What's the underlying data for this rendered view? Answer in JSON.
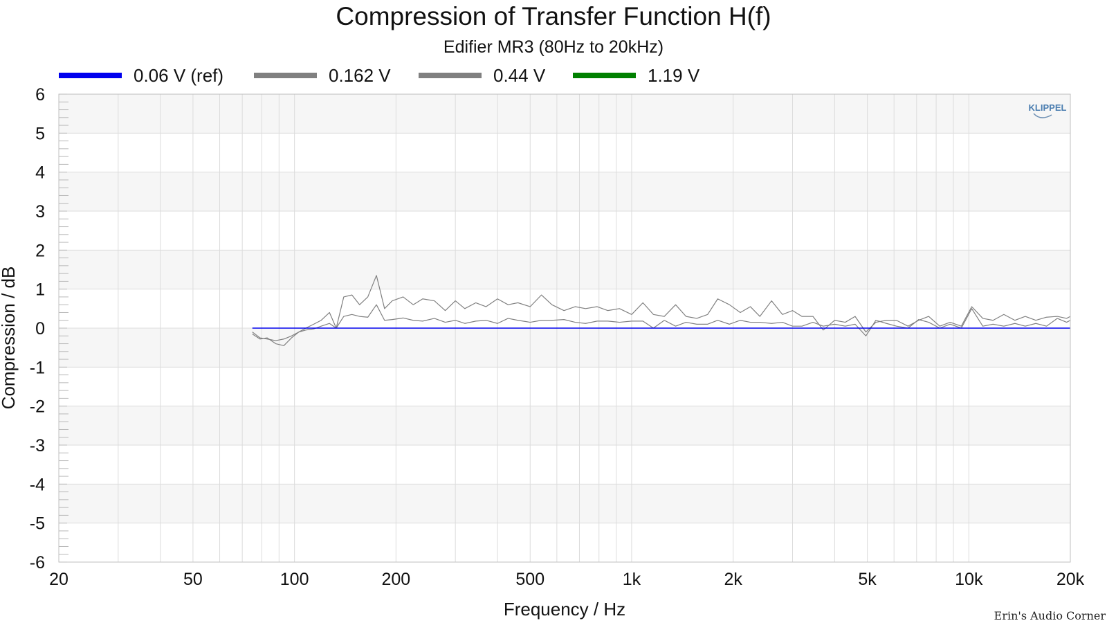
{
  "chart_data": {
    "type": "line",
    "title": "Compression of Transfer Function H(f)",
    "subtitle": "Edifier MR3 (80Hz to 20kHz)",
    "xlabel": "Frequency / Hz",
    "ylabel": "Compression / dB",
    "xscale": "log",
    "xlim": [
      20,
      20000
    ],
    "ylim": [
      -6,
      6
    ],
    "x_ticks": [
      20,
      50,
      100,
      200,
      500,
      1000,
      2000,
      5000,
      10000,
      20000
    ],
    "x_tick_labels": [
      "20",
      "50",
      "100",
      "200",
      "500",
      "1k",
      "2k",
      "5k",
      "10k",
      "20k"
    ],
    "y_ticks": [
      6,
      5,
      4,
      3,
      2,
      1,
      0,
      -1,
      -2,
      -3,
      -4,
      -5,
      -6
    ],
    "y_tick_labels": [
      "6",
      "5",
      "4",
      "3",
      "2",
      "1",
      "0",
      "-1",
      "-2",
      "-3",
      "-4",
      "-5",
      "-6"
    ],
    "grid": true,
    "legend_position": "top",
    "brand": "KLIPPEL",
    "watermark": "Erin's Audio Corner",
    "series": [
      {
        "name": "0.06 V (ref)",
        "color": "#0000ee",
        "points": [
          [
            75,
            0
          ],
          [
            20000,
            0
          ]
        ]
      },
      {
        "name": "0.162 V",
        "color": "#808080",
        "points": [
          [
            75,
            -0.1
          ],
          [
            79,
            -0.25
          ],
          [
            83,
            -0.28
          ],
          [
            88,
            -0.32
          ],
          [
            93,
            -0.28
          ],
          [
            98,
            -0.2
          ],
          [
            103,
            -0.1
          ],
          [
            108,
            -0.05
          ],
          [
            114,
            -0.02
          ],
          [
            120,
            0.05
          ],
          [
            127,
            0.12
          ],
          [
            133,
            0.0
          ],
          [
            140,
            0.3
          ],
          [
            148,
            0.35
          ],
          [
            156,
            0.3
          ],
          [
            165,
            0.28
          ],
          [
            175,
            0.6
          ],
          [
            185,
            0.2
          ],
          [
            195,
            0.22
          ],
          [
            210,
            0.26
          ],
          [
            225,
            0.2
          ],
          [
            240,
            0.18
          ],
          [
            260,
            0.25
          ],
          [
            280,
            0.15
          ],
          [
            300,
            0.2
          ],
          [
            320,
            0.12
          ],
          [
            345,
            0.18
          ],
          [
            370,
            0.2
          ],
          [
            400,
            0.12
          ],
          [
            430,
            0.25
          ],
          [
            460,
            0.2
          ],
          [
            500,
            0.15
          ],
          [
            540,
            0.2
          ],
          [
            580,
            0.2
          ],
          [
            630,
            0.22
          ],
          [
            680,
            0.15
          ],
          [
            730,
            0.12
          ],
          [
            790,
            0.18
          ],
          [
            850,
            0.18
          ],
          [
            920,
            0.15
          ],
          [
            1000,
            0.18
          ],
          [
            1080,
            0.18
          ],
          [
            1160,
            0.0
          ],
          [
            1250,
            0.2
          ],
          [
            1350,
            0.05
          ],
          [
            1450,
            0.15
          ],
          [
            1560,
            0.1
          ],
          [
            1680,
            0.1
          ],
          [
            1800,
            0.2
          ],
          [
            1950,
            0.1
          ],
          [
            2100,
            0.2
          ],
          [
            2250,
            0.15
          ],
          [
            2400,
            0.15
          ],
          [
            2600,
            0.12
          ],
          [
            2800,
            0.15
          ],
          [
            3000,
            0.05
          ],
          [
            3200,
            0.05
          ],
          [
            3450,
            0.15
          ],
          [
            3700,
            0.05
          ],
          [
            4000,
            0.1
          ],
          [
            4300,
            0.05
          ],
          [
            4600,
            0.1
          ],
          [
            4950,
            -0.2
          ],
          [
            5300,
            0.2
          ],
          [
            5700,
            0.12
          ],
          [
            6100,
            0.05
          ],
          [
            6600,
            0.0
          ],
          [
            7100,
            0.22
          ],
          [
            7600,
            0.15
          ],
          [
            8200,
            0.0
          ],
          [
            8800,
            0.1
          ],
          [
            9500,
            0.0
          ],
          [
            10200,
            0.5
          ],
          [
            11000,
            0.05
          ],
          [
            11800,
            0.1
          ],
          [
            12700,
            0.05
          ],
          [
            13700,
            0.12
          ],
          [
            14700,
            0.05
          ],
          [
            15800,
            0.12
          ],
          [
            17000,
            0.05
          ],
          [
            18300,
            0.25
          ],
          [
            19500,
            0.15
          ],
          [
            20000,
            0.2
          ]
        ]
      },
      {
        "name": "0.44 V",
        "color": "#808080",
        "points": [
          [
            75,
            -0.15
          ],
          [
            79,
            -0.28
          ],
          [
            83,
            -0.25
          ],
          [
            88,
            -0.4
          ],
          [
            93,
            -0.45
          ],
          [
            98,
            -0.25
          ],
          [
            103,
            -0.1
          ],
          [
            108,
            0.0
          ],
          [
            114,
            0.1
          ],
          [
            120,
            0.2
          ],
          [
            127,
            0.4
          ],
          [
            133,
            0.0
          ],
          [
            140,
            0.8
          ],
          [
            148,
            0.85
          ],
          [
            156,
            0.6
          ],
          [
            165,
            0.8
          ],
          [
            175,
            1.35
          ],
          [
            185,
            0.5
          ],
          [
            195,
            0.7
          ],
          [
            210,
            0.8
          ],
          [
            225,
            0.6
          ],
          [
            240,
            0.75
          ],
          [
            260,
            0.7
          ],
          [
            280,
            0.45
          ],
          [
            300,
            0.7
          ],
          [
            320,
            0.5
          ],
          [
            345,
            0.65
          ],
          [
            370,
            0.55
          ],
          [
            400,
            0.75
          ],
          [
            430,
            0.6
          ],
          [
            460,
            0.65
          ],
          [
            500,
            0.55
          ],
          [
            540,
            0.85
          ],
          [
            580,
            0.6
          ],
          [
            630,
            0.45
          ],
          [
            680,
            0.55
          ],
          [
            730,
            0.5
          ],
          [
            790,
            0.55
          ],
          [
            850,
            0.45
          ],
          [
            920,
            0.5
          ],
          [
            1000,
            0.35
          ],
          [
            1080,
            0.65
          ],
          [
            1160,
            0.35
          ],
          [
            1250,
            0.3
          ],
          [
            1350,
            0.6
          ],
          [
            1450,
            0.3
          ],
          [
            1560,
            0.25
          ],
          [
            1680,
            0.35
          ],
          [
            1800,
            0.75
          ],
          [
            1950,
            0.6
          ],
          [
            2100,
            0.4
          ],
          [
            2250,
            0.55
          ],
          [
            2400,
            0.3
          ],
          [
            2600,
            0.7
          ],
          [
            2800,
            0.35
          ],
          [
            3000,
            0.45
          ],
          [
            3200,
            0.3
          ],
          [
            3450,
            0.3
          ],
          [
            3700,
            -0.05
          ],
          [
            4000,
            0.2
          ],
          [
            4300,
            0.15
          ],
          [
            4600,
            0.3
          ],
          [
            4950,
            -0.1
          ],
          [
            5300,
            0.15
          ],
          [
            5700,
            0.2
          ],
          [
            6100,
            0.2
          ],
          [
            6600,
            0.05
          ],
          [
            7100,
            0.2
          ],
          [
            7600,
            0.3
          ],
          [
            8200,
            0.05
          ],
          [
            8800,
            0.15
          ],
          [
            9500,
            0.05
          ],
          [
            10200,
            0.55
          ],
          [
            11000,
            0.25
          ],
          [
            11800,
            0.2
          ],
          [
            12700,
            0.35
          ],
          [
            13700,
            0.2
          ],
          [
            14700,
            0.3
          ],
          [
            15800,
            0.2
          ],
          [
            17000,
            0.28
          ],
          [
            18300,
            0.3
          ],
          [
            19500,
            0.25
          ],
          [
            20000,
            0.3
          ]
        ]
      },
      {
        "name": "1.19 V",
        "color": "#008000",
        "points": []
      }
    ]
  }
}
